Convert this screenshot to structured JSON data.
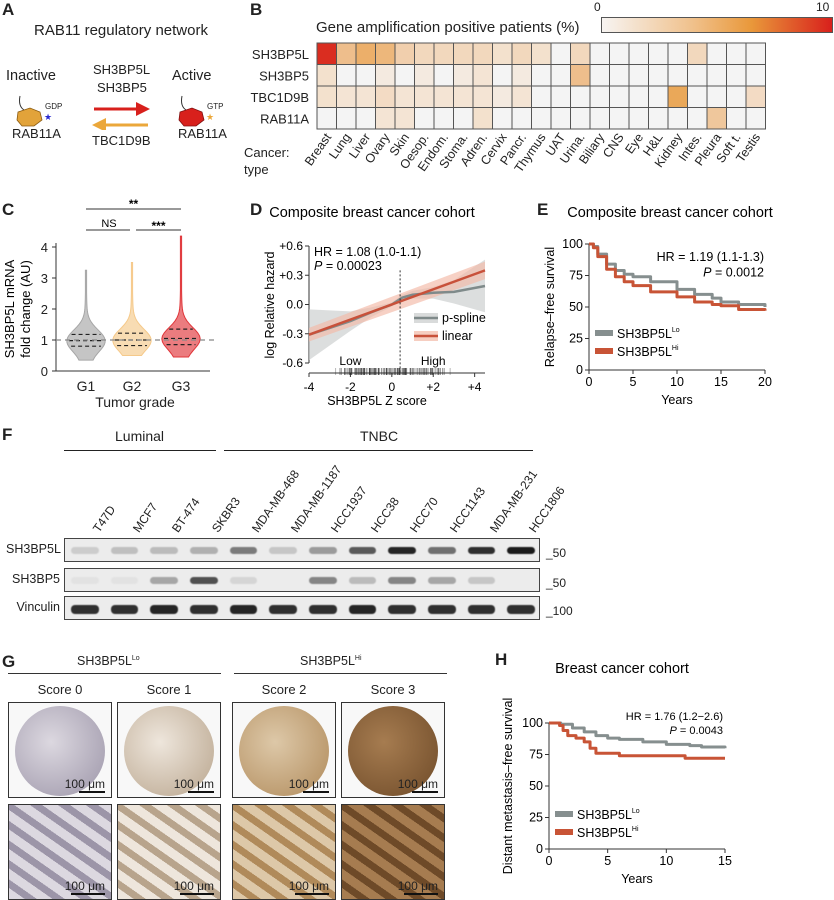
{
  "panels": {
    "A": {
      "letter": "A",
      "title": "RAB11 regulatory network",
      "inactive_label": "Inactive",
      "active_label": "Active",
      "gdp_label": "GDP",
      "gtp_label": "GTP",
      "left_protein": "RAB11A",
      "right_protein": "RAB11A",
      "gef_1": "SH3BP5L",
      "gef_2": "SH3BP5",
      "gap": "TBC1D9B",
      "colors": {
        "inactive": "#e2a33a",
        "active": "#d8201c",
        "forward_arrow": "#d8201c",
        "reverse_arrow": "#eba73a",
        "gdp_star": "#2a2ad0",
        "gtp_star": "#eba73a"
      }
    },
    "B": {
      "letter": "B"
    },
    "C": {
      "letter": "C"
    },
    "D": {
      "letter": "D"
    },
    "E": {
      "letter": "E"
    },
    "F": {
      "letter": "F",
      "group_luminal": "Luminal",
      "group_tnbc": "TNBC",
      "cell_lines": [
        "T47D",
        "MCF7",
        "BT-474",
        "SKBR3",
        "MDA-MB-468",
        "MDA-MB-1187",
        "HCC1937",
        "HCC38",
        "HCC70",
        "HCC1143",
        "MDA-MB-231",
        "HCC1806"
      ],
      "blots": [
        {
          "label": "SH3BP5L",
          "marker": "_50",
          "intensity": [
            0.12,
            0.18,
            0.2,
            0.25,
            0.5,
            0.15,
            0.35,
            0.65,
            0.9,
            0.55,
            0.85,
            0.95
          ]
        },
        {
          "label": "SH3BP5",
          "marker": "_50",
          "intensity": [
            0.02,
            0.02,
            0.3,
            0.7,
            0.08,
            0.0,
            0.45,
            0.2,
            0.45,
            0.3,
            0.15,
            0.0
          ]
        },
        {
          "label": "Vinculin",
          "marker": "_100",
          "intensity": [
            0.85,
            0.85,
            0.9,
            0.85,
            0.9,
            0.85,
            0.85,
            0.9,
            0.85,
            0.85,
            0.85,
            0.85
          ]
        }
      ]
    },
    "G": {
      "letter": "G",
      "group_lo": "SH3BP5L",
      "group_lo_sup": "Lo",
      "group_hi": "SH3BP5L",
      "group_hi_sup": "Hi",
      "scores": [
        "Score 0",
        "Score 1",
        "Score 2",
        "Score 3"
      ],
      "scale_bar": "100 μm"
    },
    "H": {
      "letter": "H"
    }
  },
  "chart_data": [
    {
      "id": "B",
      "type": "heatmap",
      "title": "Gene amplification positive patients (%)",
      "colorbar_range": [
        0,
        10
      ],
      "colorbar_min_label": "0",
      "colorbar_max_label": "10",
      "row_axis_label": "",
      "col_axis_label_1": "Cancer:",
      "col_axis_label_2": "type",
      "rows": [
        "SH3BP5L",
        "SH3BP5",
        "TBC1D9B",
        "RAB11A"
      ],
      "columns": [
        "Breast",
        "Lung",
        "Liver",
        "Ovary",
        "Skin",
        "Oesop.",
        "Endom.",
        "Stoma.",
        "Adren.",
        "Cervix",
        "Pancr.",
        "Thymus",
        "UAT",
        "Urina.",
        "Biliary",
        "CNS",
        "Eye",
        "H&L",
        "Kidney",
        "Intes.",
        "Pleura",
        "Soft t.",
        "Testis"
      ],
      "values": [
        [
          9.5,
          3.0,
          4.0,
          3.5,
          2.0,
          1.5,
          1.5,
          1.5,
          1.5,
          1.0,
          1.5,
          1.0,
          0,
          1.5,
          0,
          0,
          0,
          0,
          0,
          1.5,
          0,
          0,
          0
        ],
        [
          1.0,
          0,
          0,
          0.5,
          0,
          0.5,
          0,
          0.5,
          0.8,
          0,
          0.5,
          0,
          0,
          3.0,
          0,
          0,
          0,
          0,
          0,
          0,
          0,
          0,
          0
        ],
        [
          1.0,
          0.8,
          0.8,
          1.3,
          0.8,
          0.8,
          0.8,
          0.8,
          0.8,
          0.5,
          0.8,
          0,
          0,
          0,
          0,
          0,
          0,
          0,
          4.5,
          0,
          0,
          0,
          1.3
        ],
        [
          0,
          0,
          0,
          0.8,
          0.8,
          0,
          0,
          0,
          1.0,
          0,
          0,
          0,
          0,
          0,
          0,
          0,
          0,
          0,
          0,
          0,
          2.5,
          0,
          0
        ]
      ]
    },
    {
      "id": "C",
      "type": "violin",
      "title": "",
      "xlabel": "Tumor grade",
      "ylabel_1": "SH3BP5L mRNA",
      "ylabel_2": "fold change (AU)",
      "categories": [
        "G1",
        "G2",
        "G3"
      ],
      "ylim": [
        0,
        4
      ],
      "yticks": [
        0,
        1,
        2,
        3,
        4
      ],
      "reference_line": 1,
      "series": [
        {
          "name": "G1",
          "color": "#a6a6a6",
          "min": 0.35,
          "q1": 0.8,
          "median": 0.98,
          "q3": 1.18,
          "max": 3.25
        },
        {
          "name": "G2",
          "color": "#f5c98a",
          "min": 0.5,
          "q1": 0.82,
          "median": 1.0,
          "q3": 1.22,
          "max": 3.5
        },
        {
          "name": "G3",
          "color": "#e0363a",
          "min": 0.45,
          "q1": 0.85,
          "median": 1.05,
          "q3": 1.35,
          "max": 4.35
        }
      ],
      "significance": [
        {
          "from": "G1",
          "to": "G3",
          "label": "**"
        },
        {
          "from": "G1",
          "to": "G2",
          "label": "NS"
        },
        {
          "from": "G2",
          "to": "G3",
          "label": "***"
        }
      ]
    },
    {
      "id": "D",
      "type": "line",
      "title": "Composite breast cancer cohort",
      "xlabel": "SH3BP5L Z score",
      "ylabel": "log Relative hazard",
      "xlim": [
        -4,
        4.5
      ],
      "ylim": [
        -0.6,
        0.6
      ],
      "xticks": [
        "-4",
        "-2",
        "0",
        "+2",
        "+4"
      ],
      "yticks": [
        "+0.6",
        "+0.3",
        "0.0",
        "-0.3",
        "-0.6"
      ],
      "annotation_hr": "HR = 1.08 (1.0-1.1)",
      "annotation_p_label": "P",
      "annotation_p_value": " = 0.00023",
      "cutoff_x": 0.4,
      "region_low": "Low",
      "region_high": "High",
      "series": [
        {
          "name": "p-spline",
          "color": "#7f8a8a",
          "band_color": "#c9cccc",
          "x": [
            -4,
            -3,
            -2,
            -1,
            0,
            0.5,
            1,
            2,
            3,
            4.5
          ],
          "y": [
            -0.31,
            -0.24,
            -0.17,
            -0.08,
            0.0,
            0.07,
            0.1,
            0.12,
            0.13,
            0.19
          ],
          "band": [
            0.26,
            0.18,
            0.1,
            0.05,
            0.02,
            0.03,
            0.04,
            0.06,
            0.12,
            0.27
          ]
        },
        {
          "name": "linear",
          "color": "#c8513a",
          "band_color": "#f2b9a6",
          "x": [
            -4,
            4.5
          ],
          "y": [
            -0.31,
            0.35
          ],
          "band": [
            0.07,
            0.09
          ]
        }
      ]
    },
    {
      "id": "E",
      "type": "line",
      "title": "Composite breast cancer cohort",
      "xlabel": "Years",
      "ylabel": "Relapse–free survival",
      "xlim": [
        0,
        20
      ],
      "ylim": [
        0,
        100
      ],
      "xticks": [
        0,
        5,
        10,
        15,
        20
      ],
      "yticks": [
        0,
        25,
        50,
        75,
        100
      ],
      "annotation_hr": "HR = 1.19 (1.1-1.3)",
      "annotation_p_label": "P",
      "annotation_p_value": " = 0.0012",
      "series": [
        {
          "name": "SH3BP5L",
          "sup": "Lo",
          "color": "#868f8f",
          "x": [
            0,
            0.5,
            1,
            2,
            3,
            4,
            5,
            7,
            10,
            12,
            14,
            15,
            17,
            20
          ],
          "y": [
            100,
            98,
            92,
            84,
            79,
            76,
            74,
            70,
            64,
            60,
            57,
            54,
            52,
            50
          ]
        },
        {
          "name": "SH3BP5L",
          "sup": "Hi",
          "color": "#c85436",
          "x": [
            0,
            0.5,
            1,
            2,
            3,
            4,
            5,
            7,
            10,
            12,
            14,
            15,
            17,
            20
          ],
          "y": [
            100,
            97,
            90,
            80,
            74,
            70,
            67,
            62,
            58,
            54,
            52,
            51,
            48,
            47
          ]
        }
      ]
    },
    {
      "id": "H",
      "type": "line",
      "title": "Breast cancer cohort",
      "xlabel": "Years",
      "ylabel": "Distant metastasis–free survival",
      "xlim": [
        0,
        15
      ],
      "ylim": [
        0,
        100
      ],
      "xticks": [
        0,
        5,
        10,
        15
      ],
      "yticks": [
        0,
        25,
        50,
        75,
        100
      ],
      "annotation_hr": "HR = 1.76 (1.2−2.6)",
      "annotation_p_label": "P",
      "annotation_p_value": " = 0.0043",
      "series": [
        {
          "name": "SH3BP5L",
          "sup": "Lo",
          "color": "#868f8f",
          "x": [
            0,
            1,
            2,
            3,
            4,
            5,
            6,
            8,
            10,
            12,
            13,
            15
          ],
          "y": [
            100,
            99,
            96,
            93,
            90,
            88,
            87,
            85,
            83,
            82,
            81,
            80
          ]
        },
        {
          "name": "SH3BP5L",
          "sup": "Hi",
          "color": "#c85436",
          "x": [
            0,
            0.9,
            1.2,
            1.6,
            2.3,
            3.0,
            3.5,
            4.0,
            5.5,
            6.0,
            11.5,
            11.6,
            15
          ],
          "y": [
            100,
            98,
            94,
            90,
            88,
            85,
            80,
            76,
            76,
            74,
            74,
            72,
            72
          ]
        }
      ]
    }
  ]
}
